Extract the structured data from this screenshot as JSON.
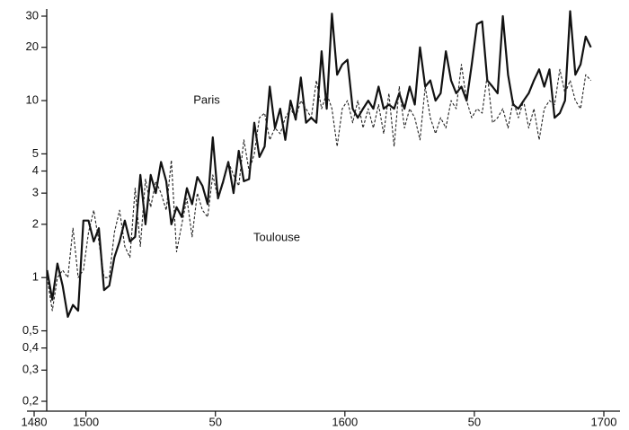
{
  "chart_data": {
    "type": "line",
    "x": [
      1485,
      1487,
      1489,
      1491,
      1493,
      1495,
      1497,
      1499,
      1501,
      1503,
      1505,
      1507,
      1509,
      1511,
      1513,
      1515,
      1517,
      1519,
      1521,
      1523,
      1525,
      1527,
      1529,
      1531,
      1533,
      1535,
      1537,
      1539,
      1541,
      1543,
      1545,
      1547,
      1549,
      1551,
      1553,
      1555,
      1557,
      1559,
      1561,
      1563,
      1565,
      1567,
      1569,
      1571,
      1573,
      1575,
      1577,
      1579,
      1581,
      1583,
      1585,
      1587,
      1589,
      1591,
      1593,
      1595,
      1597,
      1599,
      1601,
      1603,
      1605,
      1607,
      1609,
      1611,
      1613,
      1615,
      1617,
      1619,
      1621,
      1623,
      1625,
      1627,
      1629,
      1631,
      1633,
      1635,
      1637,
      1639,
      1641,
      1643,
      1645,
      1647,
      1649,
      1651,
      1653,
      1655,
      1657,
      1659,
      1661,
      1663,
      1665,
      1667,
      1669,
      1671,
      1673,
      1675,
      1677,
      1679,
      1681,
      1683,
      1685,
      1687,
      1689,
      1691,
      1693,
      1695
    ],
    "series": [
      {
        "name": "Paris",
        "color": "#111111",
        "dash": false,
        "values": [
          1.1,
          0.75,
          1.2,
          0.9,
          0.6,
          0.7,
          0.65,
          2.1,
          2.1,
          1.6,
          1.9,
          0.85,
          0.9,
          1.3,
          1.6,
          2.1,
          1.6,
          1.7,
          3.8,
          2.0,
          3.8,
          3.0,
          4.5,
          3.5,
          2.0,
          2.5,
          2.2,
          3.2,
          2.6,
          3.7,
          3.3,
          2.6,
          6.2,
          2.8,
          3.5,
          4.5,
          3.0,
          5.2,
          3.5,
          3.6,
          7.5,
          4.8,
          5.5,
          12,
          7,
          9,
          6,
          10,
          7.8,
          13.5,
          7.5,
          8,
          7.5,
          19,
          9,
          31,
          14,
          16,
          17,
          9,
          8,
          9,
          10,
          9,
          12,
          9,
          9.5,
          9,
          11,
          9,
          12,
          9.5,
          20,
          12,
          13,
          10,
          11,
          19,
          13,
          11,
          12,
          10,
          16,
          27,
          28,
          13,
          12,
          11,
          30,
          14,
          9.5,
          9,
          10,
          11,
          13,
          15,
          12,
          15,
          8,
          8.5,
          10,
          32,
          14,
          16,
          23,
          20
        ]
      },
      {
        "name": "Toulouse",
        "color": "#222222",
        "dash": true,
        "values": [
          1.0,
          0.65,
          1.0,
          1.1,
          1.0,
          1.9,
          1.0,
          1.1,
          1.8,
          2.4,
          1.6,
          1.0,
          1.0,
          1.8,
          2.4,
          1.5,
          1.3,
          3.2,
          1.5,
          3.6,
          2.5,
          3.5,
          3.0,
          2.4,
          4.6,
          1.4,
          2.0,
          2.8,
          1.7,
          3.0,
          2.4,
          2.2,
          3.8,
          2.8,
          3.4,
          4.5,
          3.8,
          3.3,
          6,
          4,
          5,
          8,
          8.5,
          6,
          7,
          6.5,
          8,
          9,
          8,
          10,
          9,
          8,
          13,
          9,
          11,
          9,
          5.5,
          9,
          10,
          7.5,
          10,
          7,
          9,
          7,
          9.5,
          6.5,
          11,
          5.5,
          12,
          7,
          9,
          8,
          6,
          12,
          8,
          6.5,
          8,
          7,
          10,
          9,
          16,
          10,
          8,
          9,
          8.5,
          14,
          7.5,
          8,
          9,
          7,
          10,
          8,
          10,
          7,
          9,
          6,
          9,
          10,
          9.5,
          15,
          11,
          13,
          10,
          9,
          14,
          13
        ]
      }
    ],
    "annotations": [
      "Paris",
      "Toulouse"
    ],
    "xlim": [
      1480,
      1700
    ],
    "xticks": [
      1480,
      1500,
      {
        "value": 1550,
        "label": "50"
      },
      1600,
      {
        "value": 1650,
        "label": "50"
      },
      1700
    ],
    "ylim": [
      0.2,
      30
    ],
    "log_y": true,
    "yticks": [
      {
        "value": 0.2,
        "label": "0,2"
      },
      {
        "value": 0.3,
        "label": "0,3"
      },
      {
        "value": 0.4,
        "label": "0,4"
      },
      {
        "value": 0.5,
        "label": "0,5"
      },
      1,
      2,
      3,
      4,
      5,
      10,
      20,
      30
    ]
  }
}
